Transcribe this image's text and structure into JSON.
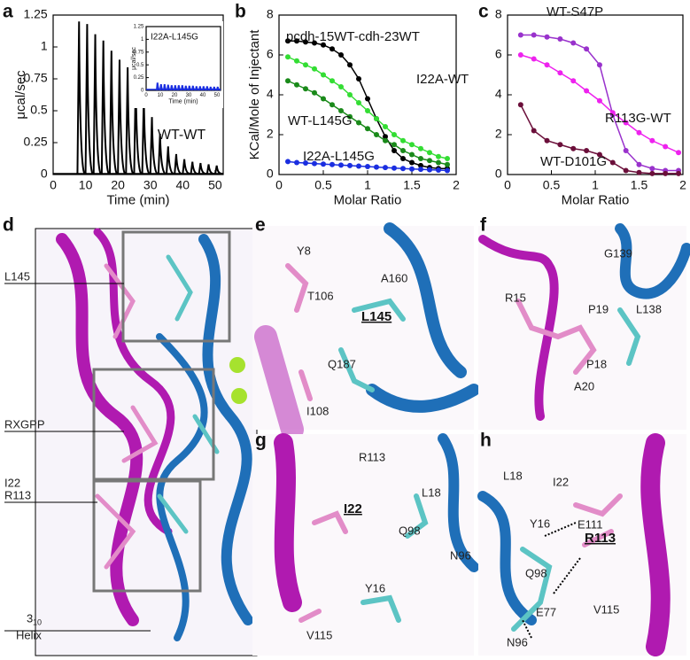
{
  "chart_data": [
    {
      "panel": "a",
      "type": "impulse",
      "xlabel": "Time (min)",
      "ylabel": "μcal/sec",
      "annotation": "WT-WT",
      "xlim": [
        0,
        52.5
      ],
      "ylim": [
        0,
        1.25
      ],
      "xticks": [
        0,
        10,
        20,
        30,
        40,
        50
      ],
      "yticks": [
        0,
        0.25,
        0.5,
        0.75,
        1,
        1.25
      ],
      "series": [
        {
          "color": "#000000",
          "x": [
            8,
            10.5,
            13,
            15.5,
            18,
            20.5,
            23,
            25.5,
            28,
            30.5,
            33,
            35.5,
            38,
            40.5,
            43,
            45.5,
            48,
            50.5
          ],
          "values": [
            1.2,
            1.18,
            1.1,
            1.05,
            0.97,
            0.9,
            0.84,
            0.75,
            0.62,
            0.45,
            0.32,
            0.22,
            0.16,
            0.12,
            0.1,
            0.09,
            0.08,
            0.07
          ]
        }
      ],
      "inset": {
        "type": "impulse",
        "xlabel": "Time (min)",
        "ylabel": "μcal/sec",
        "xlim": [
          0,
          52.5
        ],
        "ylim": [
          0,
          1.25
        ],
        "xticks": [
          0,
          10,
          20,
          30,
          40,
          50
        ],
        "yticks": [
          0,
          0.25,
          0.5,
          0.75,
          1,
          1.25
        ],
        "series": [
          {
            "name": "I22A-L145G",
            "color": "#1a2ee0",
            "x": [
              8,
              10.5,
              13,
              15.5,
              18,
              20.5,
              23,
              25.5,
              28,
              30.5,
              33,
              35.5,
              38,
              40.5,
              43,
              45.5,
              48,
              50.5
            ],
            "values": [
              0.15,
              0.12,
              0.12,
              0.11,
              0.1,
              0.1,
              0.1,
              0.1,
              0.09,
              0.09,
              0.09,
              0.08,
              0.08,
              0.08,
              0.08,
              0.07,
              0.07,
              0.07
            ]
          }
        ]
      }
    },
    {
      "panel": "b",
      "type": "line",
      "xlabel": "Molar Ratio",
      "ylabel": "KCal/Mole of Injectant",
      "xlim": [
        0,
        2
      ],
      "ylim": [
        0,
        8
      ],
      "xticks": [
        0,
        0.5,
        1,
        1.5,
        2
      ],
      "yticks": [
        0,
        2,
        4,
        6,
        8
      ],
      "x": [
        0.1,
        0.2,
        0.3,
        0.4,
        0.5,
        0.6,
        0.7,
        0.8,
        0.9,
        1.0,
        1.1,
        1.2,
        1.3,
        1.4,
        1.5,
        1.6,
        1.7,
        1.8,
        1.9
      ],
      "series": [
        {
          "name": "pcdh-15WT-cdh-23WT",
          "color": "#000000",
          "values": [
            6.7,
            6.7,
            6.65,
            6.6,
            6.5,
            6.3,
            6.0,
            5.5,
            4.8,
            3.8,
            2.8,
            1.9,
            1.2,
            0.8,
            0.6,
            0.45,
            0.35,
            0.3,
            0.3
          ]
        },
        {
          "name": "I22A-WT",
          "color": "#33dd33",
          "values": [
            5.9,
            5.7,
            5.5,
            5.3,
            5.0,
            4.7,
            4.4,
            4.0,
            3.6,
            3.2,
            2.8,
            2.4,
            2.0,
            1.7,
            1.5,
            1.3,
            1.1,
            0.9,
            0.8
          ]
        },
        {
          "name": "WT-L145G",
          "color": "#1a8a1a",
          "values": [
            4.7,
            4.5,
            4.3,
            4.1,
            3.8,
            3.5,
            3.2,
            2.9,
            2.6,
            2.3,
            2.0,
            1.7,
            1.5,
            1.2,
            1.0,
            0.8,
            0.7,
            0.6,
            0.5
          ]
        },
        {
          "name": "I22A-L145G",
          "color": "#1a2ee0",
          "values": [
            0.65,
            0.6,
            0.58,
            0.55,
            0.52,
            0.5,
            0.47,
            0.45,
            0.42,
            0.4,
            0.37,
            0.35,
            0.32,
            0.3,
            0.28,
            0.26,
            0.24,
            0.22,
            0.2
          ]
        }
      ]
    },
    {
      "panel": "c",
      "type": "line",
      "xlabel": "Molar Ratio",
      "xlim": [
        0,
        2
      ],
      "ylim": [
        0,
        8
      ],
      "xticks": [
        0,
        0.5,
        1,
        1.5,
        2
      ],
      "yticks": [
        0,
        2,
        4,
        6,
        8
      ],
      "x": [
        0.15,
        0.3,
        0.45,
        0.6,
        0.75,
        0.9,
        1.05,
        1.2,
        1.35,
        1.5,
        1.65,
        1.8,
        1.95
      ],
      "series": [
        {
          "name": "WT-S47P",
          "color": "#9932cc",
          "values": [
            7.0,
            7.0,
            6.9,
            6.8,
            6.6,
            6.3,
            5.5,
            3.0,
            1.2,
            0.5,
            0.3,
            0.2,
            0.2
          ]
        },
        {
          "name": "R113G-WT",
          "color": "#ee22ee",
          "values": [
            6.0,
            5.8,
            5.5,
            5.1,
            4.7,
            4.2,
            3.7,
            3.1,
            2.6,
            2.1,
            1.7,
            1.4,
            1.1
          ]
        },
        {
          "name": "WT-D101G",
          "color": "#6b0f3a",
          "values": [
            3.5,
            2.2,
            1.7,
            1.5,
            1.3,
            1.2,
            1.0,
            0.6,
            0.2,
            0.1,
            0.05,
            0.05,
            0.05
          ]
        }
      ]
    }
  ],
  "structure_panels": [
    {
      "letter": "d",
      "labels": [
        "L145",
        "RXGPP",
        "I22",
        "R113",
        "3",
        "10",
        "Helix"
      ]
    },
    {
      "letter": "e",
      "labels": [
        "Y8",
        "A160",
        "T106",
        "L145",
        "Q187",
        "I108"
      ]
    },
    {
      "letter": "f",
      "labels": [
        "G139",
        "R15",
        "P19",
        "L138",
        "P18",
        "A20"
      ]
    },
    {
      "letter": "g",
      "labels": [
        "R113",
        "L18",
        "I22",
        "Q98",
        "N96",
        "Y16",
        "V115"
      ]
    },
    {
      "letter": "h",
      "labels": [
        "L18",
        "I22",
        "E111",
        "Y16",
        "R113",
        "Q98",
        "E77",
        "V115",
        "N96"
      ]
    }
  ]
}
